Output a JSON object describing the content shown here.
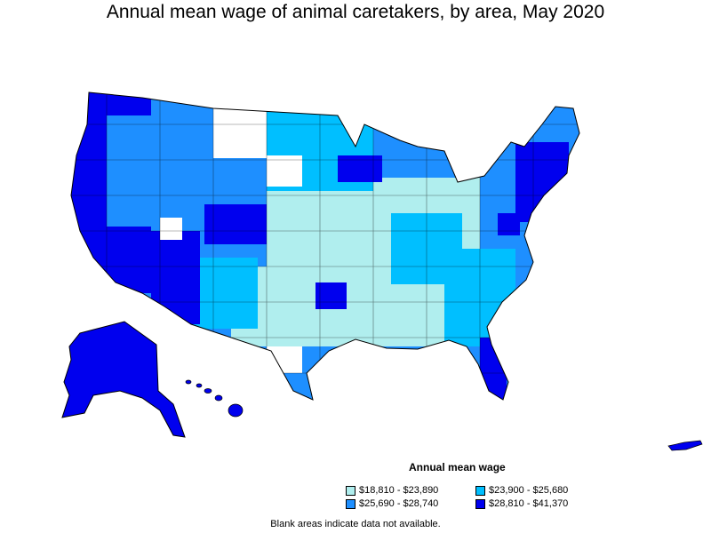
{
  "title": "Annual mean wage of animal caretakers, by area, May 2020",
  "legend": {
    "title": "Annual mean wage",
    "items": [
      {
        "label": "$18,810 - $23,890",
        "color": "#b0eeee"
      },
      {
        "label": "$23,900 - $25,680",
        "color": "#00bfff"
      },
      {
        "label": "$25,690 - $28,740",
        "color": "#1e8fff"
      },
      {
        "label": "$28,810 - $41,370",
        "color": "#0000ee"
      }
    ]
  },
  "note": "Blank areas indicate data not available."
}
